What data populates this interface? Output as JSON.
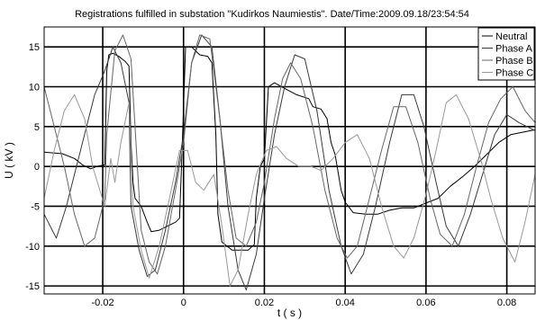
{
  "chart_data": {
    "type": "line",
    "title": "Registrations fulfilled in substation \"Kudirkos Naumiestis\". Date/Time:2009.09.18/23:54:54",
    "xlabel": "t ( s )",
    "ylabel": "U ( kV )",
    "xlim": [
      -0.0345,
      0.087
    ],
    "ylim": [
      -16,
      17.5
    ],
    "xticks": [
      -0.02,
      0,
      0.02,
      0.04,
      0.06,
      0.08
    ],
    "xtick_labels": [
      "-0.02",
      "0",
      "0.02",
      "0.04",
      "0.06",
      "0.08"
    ],
    "yticks": [
      -15,
      -10,
      -5,
      0,
      5,
      10,
      15
    ],
    "ytick_labels": [
      "-15",
      "-10",
      "-5",
      "0",
      "5",
      "10",
      "15"
    ],
    "grid": true,
    "legend_position": "top-right",
    "series": [
      {
        "name": "Neutral",
        "color": "#000000",
        "points": [
          [
            -0.0345,
            1.8
          ],
          [
            -0.03,
            1.6
          ],
          [
            -0.027,
            1.0
          ],
          [
            -0.025,
            0.2
          ],
          [
            -0.023,
            -0.3
          ],
          [
            -0.0215,
            0
          ],
          [
            -0.0195,
            0.2
          ],
          [
            -0.019,
            12
          ],
          [
            -0.0185,
            14
          ],
          [
            -0.0175,
            14.2
          ],
          [
            -0.016,
            13.8
          ],
          [
            -0.0145,
            13.2
          ],
          [
            -0.0135,
            12.6
          ],
          [
            -0.013,
            3
          ],
          [
            -0.0125,
            -2
          ],
          [
            -0.012,
            -4
          ],
          [
            -0.0105,
            -5
          ],
          [
            -0.009,
            -7
          ],
          [
            -0.008,
            -8.2
          ],
          [
            -0.006,
            -8
          ],
          [
            -0.004,
            -7.5
          ],
          [
            -0.002,
            -7
          ],
          [
            -0.001,
            -6.5
          ],
          [
            -0.0005,
            0
          ],
          [
            0.0005,
            15
          ],
          [
            0.002,
            15
          ],
          [
            0.004,
            14
          ],
          [
            0.006,
            13.8
          ],
          [
            0.007,
            13
          ],
          [
            0.008,
            4
          ],
          [
            0.0085,
            -6
          ],
          [
            0.0095,
            -9.5
          ],
          [
            0.012,
            -10.5
          ],
          [
            0.014,
            -10.5
          ],
          [
            0.016,
            -10.5
          ],
          [
            0.0175,
            -9.8
          ],
          [
            0.018,
            -4
          ],
          [
            0.019,
            0
          ],
          [
            0.02,
            1
          ],
          [
            0.021,
            10
          ],
          [
            0.0225,
            10.5
          ],
          [
            0.025,
            9.8
          ],
          [
            0.028,
            9
          ],
          [
            0.031,
            8.5
          ],
          [
            0.032,
            7.5
          ],
          [
            0.034,
            7.2
          ],
          [
            0.0355,
            6
          ],
          [
            0.0365,
            3
          ],
          [
            0.0375,
            1.5
          ],
          [
            0.039,
            -3
          ],
          [
            0.04,
            -4.5
          ],
          [
            0.042,
            -5.8
          ],
          [
            0.045,
            -6
          ],
          [
            0.048,
            -6
          ],
          [
            0.051,
            -5.5
          ],
          [
            0.054,
            -5.2
          ],
          [
            0.057,
            -5.2
          ],
          [
            0.06,
            -4.6
          ],
          [
            0.063,
            -4
          ],
          [
            0.066,
            -2.5
          ],
          [
            0.069,
            -1.3
          ],
          [
            0.072,
            0
          ],
          [
            0.075,
            1.5
          ],
          [
            0.078,
            3
          ],
          [
            0.081,
            4
          ],
          [
            0.084,
            4.3
          ],
          [
            0.087,
            4.6
          ]
        ]
      },
      {
        "name": "Phase A",
        "color": "#3a3a3a",
        "points": [
          [
            -0.0345,
            -6
          ],
          [
            -0.0315,
            -9
          ],
          [
            -0.029,
            -5
          ],
          [
            -0.0265,
            0
          ],
          [
            -0.024,
            5
          ],
          [
            -0.022,
            9
          ],
          [
            -0.0195,
            12
          ],
          [
            -0.0175,
            15
          ],
          [
            -0.0155,
            13
          ],
          [
            -0.0135,
            8
          ],
          [
            -0.013,
            -5
          ],
          [
            -0.011,
            -10.5
          ],
          [
            -0.009,
            -13.8
          ],
          [
            -0.007,
            -13
          ],
          [
            -0.0045,
            -8
          ],
          [
            -0.002,
            -2
          ],
          [
            0,
            4
          ],
          [
            0.002,
            13
          ],
          [
            0.0045,
            16.5
          ],
          [
            0.007,
            15
          ],
          [
            0.009,
            6
          ],
          [
            0.011,
            -5
          ],
          [
            0.0135,
            -13
          ],
          [
            0.0155,
            -15.5
          ],
          [
            0.018,
            -11
          ],
          [
            0.02,
            -4
          ],
          [
            0.0225,
            4
          ],
          [
            0.025,
            10
          ],
          [
            0.0275,
            14
          ],
          [
            0.03,
            13.5
          ],
          [
            0.033,
            7
          ],
          [
            0.036,
            -3
          ],
          [
            0.039,
            -10
          ],
          [
            0.0415,
            -13.5
          ],
          [
            0.0445,
            -11
          ],
          [
            0.0475,
            -5
          ],
          [
            0.051,
            3
          ],
          [
            0.054,
            9
          ],
          [
            0.057,
            9
          ],
          [
            0.0595,
            5
          ],
          [
            0.0625,
            -2
          ],
          [
            0.065,
            -7.5
          ],
          [
            0.068,
            -10
          ],
          [
            0.071,
            -6
          ],
          [
            0.074,
            -1
          ],
          [
            0.077,
            4
          ],
          [
            0.08,
            6.5
          ],
          [
            0.083,
            5.5
          ],
          [
            0.087,
            4.5
          ]
        ]
      },
      {
        "name": "Phase B",
        "color": "#666666",
        "points": [
          [
            -0.0345,
            10
          ],
          [
            -0.032,
            5
          ],
          [
            -0.0295,
            0
          ],
          [
            -0.027,
            -6
          ],
          [
            -0.0245,
            -10
          ],
          [
            -0.022,
            -9
          ],
          [
            -0.0195,
            -4
          ],
          [
            -0.019,
            4
          ],
          [
            -0.017,
            14.5
          ],
          [
            -0.015,
            16.5
          ],
          [
            -0.013,
            13.5
          ],
          [
            -0.012,
            5
          ],
          [
            -0.0105,
            -8
          ],
          [
            -0.0085,
            -12
          ],
          [
            -0.0065,
            -13.5
          ],
          [
            -0.0045,
            -10
          ],
          [
            -0.002,
            -3
          ],
          [
            0,
            3
          ],
          [
            0.002,
            13
          ],
          [
            0.004,
            16.5
          ],
          [
            0.0065,
            16
          ],
          [
            0.0085,
            8
          ],
          [
            0.011,
            -3
          ],
          [
            0.013,
            -9
          ],
          [
            0.0155,
            -10
          ],
          [
            0.018,
            -7
          ],
          [
            0.02,
            -2
          ],
          [
            0.0225,
            6
          ],
          [
            0.0245,
            11
          ],
          [
            0.0265,
            13
          ],
          [
            0.029,
            11
          ],
          [
            0.032,
            5
          ],
          [
            0.035,
            -3
          ],
          [
            0.038,
            -9
          ],
          [
            0.0405,
            -11.5
          ],
          [
            0.043,
            -10
          ],
          [
            0.046,
            -4
          ],
          [
            0.049,
            2
          ],
          [
            0.052,
            7.5
          ],
          [
            0.055,
            7.5
          ],
          [
            0.058,
            3
          ],
          [
            0.061,
            -4
          ],
          [
            0.0635,
            -8.5
          ],
          [
            0.0665,
            -10
          ],
          [
            0.0695,
            -6
          ],
          [
            0.0725,
            0
          ],
          [
            0.0755,
            5.5
          ],
          [
            0.0785,
            8.5
          ],
          [
            0.0815,
            10
          ],
          [
            0.0845,
            7
          ],
          [
            0.087,
            5.5
          ]
        ]
      },
      {
        "name": "Phase C",
        "color": "#999999",
        "points": [
          [
            -0.0345,
            -4
          ],
          [
            -0.032,
            2
          ],
          [
            -0.0295,
            7
          ],
          [
            -0.027,
            9
          ],
          [
            -0.0245,
            6
          ],
          [
            -0.0225,
            0
          ],
          [
            -0.0195,
            -5
          ],
          [
            -0.018,
            1
          ],
          [
            -0.017,
            -2
          ],
          [
            -0.0155,
            3
          ],
          [
            -0.0135,
            8
          ],
          [
            -0.0125,
            -5
          ],
          [
            -0.0105,
            -10.5
          ],
          [
            -0.0085,
            -14
          ],
          [
            -0.006,
            -10
          ],
          [
            -0.0035,
            -4
          ],
          [
            -0.001,
            2
          ],
          [
            0.001,
            2
          ],
          [
            0.003,
            -2
          ],
          [
            0.005,
            -3
          ],
          [
            0.0075,
            -1
          ],
          [
            0.0095,
            -7.5
          ],
          [
            0.0115,
            -15
          ],
          [
            0.0135,
            -13
          ],
          [
            0.016,
            -6
          ],
          [
            0.018,
            -1
          ],
          [
            0.0205,
            2
          ],
          [
            0.023,
            2.5
          ],
          [
            0.0255,
            1
          ],
          [
            0.0285,
            0
          ],
          [
            0.0315,
            0
          ],
          [
            0.034,
            -0.5
          ],
          [
            0.037,
            1
          ],
          [
            0.04,
            3
          ],
          [
            0.043,
            4
          ],
          [
            0.046,
            1
          ],
          [
            0.049,
            -5
          ],
          [
            0.052,
            -10
          ],
          [
            0.0545,
            -11.5
          ],
          [
            0.057,
            -9
          ],
          [
            0.06,
            -3.5
          ],
          [
            0.0625,
            2
          ],
          [
            0.065,
            8
          ],
          [
            0.0675,
            9
          ],
          [
            0.0705,
            6
          ],
          [
            0.0735,
            1
          ],
          [
            0.076,
            -4
          ],
          [
            0.079,
            -9
          ],
          [
            0.082,
            -12
          ],
          [
            0.0845,
            -7
          ],
          [
            0.087,
            -1
          ]
        ]
      }
    ]
  }
}
